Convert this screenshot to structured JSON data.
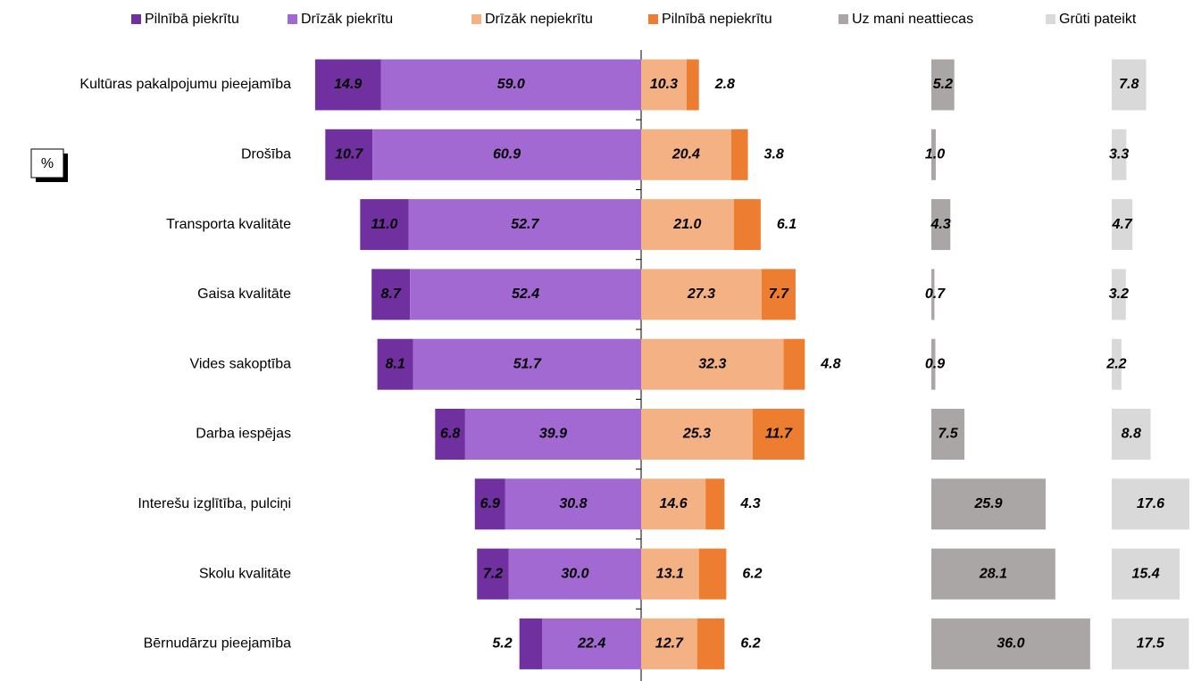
{
  "chart_data": {
    "type": "diverging-bar",
    "unit_label": "%",
    "categories": [
      "Kultūras pakalpojumu pieejamība",
      "Drošība",
      "Transporta kvalitāte",
      "Gaisa kvalitāte",
      "Vides sakoptība",
      "Darba iespējas",
      "Interešu izglītība, pulciņi",
      "Skolu kvalitāte",
      "Bērnudārzu pieejamība"
    ],
    "series": [
      {
        "name": "Pilnībā piekrītu",
        "color": "#7030a0",
        "values": [
          14.9,
          10.7,
          11.0,
          8.7,
          8.1,
          6.8,
          6.9,
          7.2,
          5.2
        ],
        "value_labels": [
          "14.9",
          "10.7",
          "11.0",
          "8.7",
          "8.1",
          "6.8",
          "6.9",
          "7.2",
          "5.2"
        ]
      },
      {
        "name": "Drīzāk piekrītu",
        "color": "#a369d3",
        "values": [
          59.0,
          60.9,
          52.7,
          52.4,
          51.7,
          39.9,
          30.8,
          30.0,
          22.4
        ],
        "value_labels": [
          "59.0",
          "60.9",
          "52.7",
          "52.4",
          "51.7",
          "39.9",
          "30.8",
          "30.0",
          "22.4"
        ]
      },
      {
        "name": "Drīzāk nepiekrītu",
        "color": "#f4b183",
        "values": [
          10.3,
          20.4,
          21.0,
          27.3,
          32.3,
          25.3,
          14.6,
          13.1,
          12.7
        ],
        "value_labels": [
          "10.3",
          "20.4",
          "21.0",
          "27.3",
          "32.3",
          "25.3",
          "14.6",
          "13.1",
          "12.7"
        ]
      },
      {
        "name": "Pilnībā nepiekrītu",
        "color": "#ed7d31",
        "values": [
          2.8,
          3.8,
          6.1,
          7.7,
          4.8,
          11.7,
          4.3,
          6.2,
          6.2
        ],
        "value_labels": [
          "2.8",
          "3.8",
          "6.1",
          "7.7",
          "4.8",
          "11.7",
          "4.3",
          "6.2",
          "6.2"
        ]
      },
      {
        "name": "Uz mani neattiecas",
        "color": "#aaa6a6",
        "values": [
          5.2,
          1.0,
          4.3,
          0.7,
          0.9,
          7.5,
          25.9,
          28.1,
          36.0
        ],
        "value_labels": [
          "5.2",
          "1.0",
          "4.3",
          "0.7",
          "0.9",
          "7.5",
          "25.9",
          "28.1",
          "36.0"
        ]
      },
      {
        "name": "Grūti pateikt",
        "color": "#d9d9d9",
        "values": [
          7.8,
          3.3,
          4.7,
          3.2,
          2.2,
          8.8,
          17.6,
          15.4,
          17.5
        ],
        "value_labels": [
          "7.8",
          "3.3",
          "4.7",
          "3.2",
          "2.2",
          "8.8",
          "17.6",
          "15.4",
          "17.5"
        ]
      }
    ]
  }
}
